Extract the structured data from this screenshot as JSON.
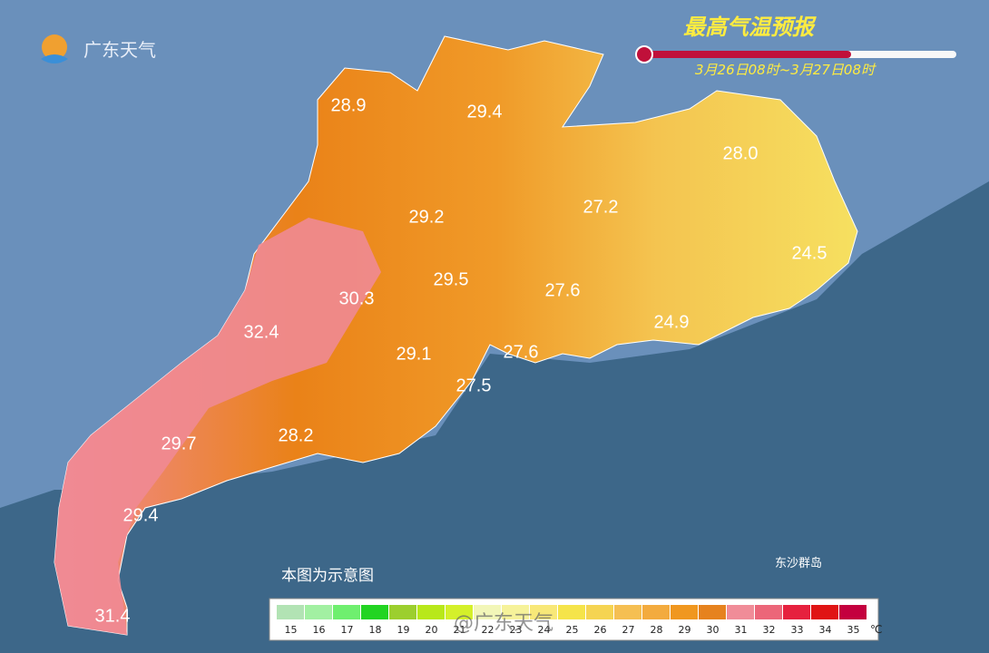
{
  "header": {
    "logo": "广东天气",
    "title": "最高气温预报",
    "period": "3月26日08时~3月27日08时"
  },
  "map": {
    "labels": [
      "28.9",
      "29.4",
      "28.0",
      "29.2",
      "27.2",
      "24.5",
      "29.5",
      "30.3",
      "27.6",
      "32.4",
      "24.9",
      "29.1",
      "27.6",
      "27.5",
      "29.7",
      "28.2",
      "29.4",
      "31.4"
    ],
    "islands": "东沙群岛",
    "note": "本图为示意图",
    "watermark": "@广东天气"
  },
  "legend": {
    "unit": "℃",
    "items": [
      {
        "label": "15",
        "color": "#b2e3b4"
      },
      {
        "label": "16",
        "color": "#a2f0a2"
      },
      {
        "label": "17",
        "color": "#6fef6f"
      },
      {
        "label": "18",
        "color": "#22d422"
      },
      {
        "label": "19",
        "color": "#9ccf2e"
      },
      {
        "label": "20",
        "color": "#b8e81a"
      },
      {
        "label": "21",
        "color": "#d4f02a"
      },
      {
        "label": "22",
        "color": "#f2f6b8"
      },
      {
        "label": "23",
        "color": "#f6f29a"
      },
      {
        "label": "24",
        "color": "#f8e878"
      },
      {
        "label": "25",
        "color": "#f5e44a"
      },
      {
        "label": "26",
        "color": "#f5d452"
      },
      {
        "label": "27",
        "color": "#f5bf52"
      },
      {
        "label": "28",
        "color": "#f3ab3e"
      },
      {
        "label": "29",
        "color": "#f0971f"
      },
      {
        "label": "30",
        "color": "#e6821e"
      },
      {
        "label": "31",
        "color": "#f08c98"
      },
      {
        "label": "32",
        "color": "#ec6679"
      },
      {
        "label": "33",
        "color": "#e6213e"
      },
      {
        "label": "34",
        "color": "#e01414"
      },
      {
        "label": "35",
        "color": "#c4003e"
      }
    ]
  }
}
